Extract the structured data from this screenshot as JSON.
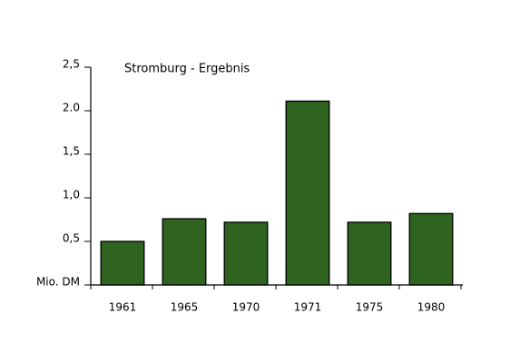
{
  "chart_data": {
    "type": "bar",
    "title": "Stromburg - Ergebnis",
    "categories": [
      "1961",
      "1965",
      "1970",
      "1971",
      "1975",
      "1980"
    ],
    "values": [
      0.5,
      0.76,
      0.72,
      2.11,
      0.72,
      0.82
    ],
    "color": "#2e6320",
    "ylim": [
      0,
      2.5
    ],
    "yticks": [
      {
        "value": 0,
        "label": "Mio. DM"
      },
      {
        "value": 0.5,
        "label": "0,5"
      },
      {
        "value": 1,
        "label": "1,0"
      },
      {
        "value": 1.5,
        "label": "1,5"
      },
      {
        "value": 2,
        "label": "2.0"
      },
      {
        "value": 2.5,
        "label": "2,5"
      }
    ]
  }
}
